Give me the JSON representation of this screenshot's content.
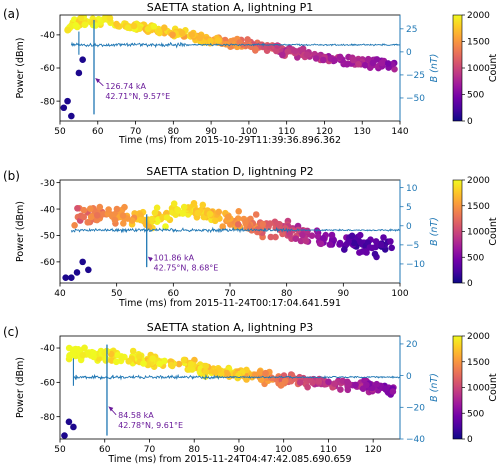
{
  "colors": {
    "signal": "#1f77b4",
    "annotation": "#6a1b9a",
    "colormap": [
      "#0d0887",
      "#46039f",
      "#7201a8",
      "#9c179e",
      "#bd3786",
      "#d8576b",
      "#ed7953",
      "#fb9f3a",
      "#fdca26",
      "#f0f921"
    ]
  },
  "colorbar": {
    "label": "Count",
    "ticks": [
      "0",
      "500",
      "1000",
      "1500",
      "2000"
    ]
  },
  "chart_data": [
    {
      "type": "scatter",
      "panel_label": "(a)",
      "title": "SAETTA station A, lightning P1",
      "xlabel": "Time (ms) from 2015-10-29T11:39:36.896.362",
      "ylabel": "Power (dBm)",
      "y2label": "B (nT)",
      "xlim": [
        50,
        140
      ],
      "ylim": [
        -92,
        -28
      ],
      "y2lim": [
        -75,
        40
      ],
      "xticks": [
        50,
        60,
        70,
        80,
        90,
        100,
        110,
        120,
        130,
        140
      ],
      "yticks": [
        -80,
        -60,
        -40
      ],
      "y2ticks": [
        -50,
        -25,
        0,
        25
      ],
      "baseline_power": -46,
      "spike": {
        "x": 59,
        "top": -31,
        "bottom": -88
      },
      "spike2": {
        "x": 55,
        "top": -38,
        "bottom": -52
      },
      "annotation": {
        "line1": "126.74 kA",
        "line2": "42.71°N, 9.57°E",
        "x": 62,
        "y": -75,
        "arrow_to": [
          59.3,
          -66
        ]
      },
      "power_trend": {
        "x": [
          52,
          55,
          60,
          70,
          80,
          90,
          100,
          110,
          120,
          130,
          139
        ],
        "y": [
          -37,
          -31,
          -32,
          -35,
          -39,
          -43,
          -46,
          -50,
          -54,
          -57,
          -58
        ],
        "spread": 4
      },
      "count_trend": {
        "x": [
          52,
          90,
          110,
          139
        ],
        "count": [
          2000,
          1700,
          900,
          600
        ]
      },
      "low_points": [
        {
          "x": 52,
          "y": -80
        },
        {
          "x": 51,
          "y": -84
        },
        {
          "x": 53,
          "y": -89
        },
        {
          "x": 55,
          "y": -63
        },
        {
          "x": 56,
          "y": -55
        }
      ]
    },
    {
      "type": "scatter",
      "panel_label": "(b)",
      "title": "SAETTA station D, lightning P2",
      "xlabel": "Time (ms) from 2015-11-24T00:17:04.641.591",
      "ylabel": "Power (dBm)",
      "y2label": "B (nT)",
      "xlim": [
        40,
        100
      ],
      "ylim": [
        -68,
        -29
      ],
      "y2lim": [
        -15,
        12
      ],
      "xticks": [
        40,
        50,
        60,
        70,
        80,
        90,
        100
      ],
      "yticks": [
        -60,
        -50,
        -40,
        -30
      ],
      "y2ticks": [
        -10,
        -5,
        0,
        5,
        10
      ],
      "baseline_power": -48,
      "spike": {
        "x": 55.3,
        "top": -42,
        "bottom": -62
      },
      "annotation": {
        "line1": "101.86 kA",
        "line2": "42.75°N, 8.68°E",
        "x": 56.5,
        "y": -61,
        "arrow_to": [
          55.5,
          -58
        ]
      },
      "power_trend": {
        "x": [
          42,
          48,
          52,
          56,
          62,
          70,
          78,
          86,
          92,
          99
        ],
        "y": [
          -44,
          -41,
          -43,
          -45,
          -40,
          -44,
          -47,
          -51,
          -53,
          -54
        ],
        "spread": 5
      },
      "count_trend": {
        "x": [
          42,
          48,
          58,
          66,
          76,
          84,
          90,
          99
        ],
        "count": [
          1200,
          1400,
          1900,
          1800,
          1200,
          750,
          350,
          250
        ]
      },
      "low_points": [
        {
          "x": 41,
          "y": -66
        },
        {
          "x": 42,
          "y": -66
        },
        {
          "x": 43,
          "y": -64
        },
        {
          "x": 44,
          "y": -60
        },
        {
          "x": 45,
          "y": -63
        }
      ]
    },
    {
      "type": "scatter",
      "panel_label": "(c)",
      "title": "SAETTA station A, lightning P3",
      "xlabel": "Time (ms) from 2015-11-24T04:47:42.085.690.659",
      "ylabel": "Power (dBm)",
      "y2label": "B (nT)",
      "xlim": [
        50,
        126
      ],
      "ylim": [
        -93,
        -33
      ],
      "y2lim": [
        -40,
        25
      ],
      "xticks": [
        50,
        60,
        70,
        80,
        90,
        100,
        110,
        120
      ],
      "yticks": [
        -80,
        -60,
        -40
      ],
      "y2ticks": [
        -40,
        -20,
        0,
        20
      ],
      "baseline_power": -57,
      "spike": {
        "x": 60.5,
        "top": -38,
        "bottom": -91
      },
      "spike2": {
        "x": 53,
        "top": -46,
        "bottom": -62
      },
      "annotation": {
        "line1": "84.58 kA",
        "line2": "42.78°N, 9.61°E",
        "x": 63,
        "y": -83,
        "arrow_to": [
          60.8,
          -74
        ]
      },
      "power_trend": {
        "x": [
          52,
          56,
          60,
          70,
          80,
          90,
          100,
          110,
          120,
          125
        ],
        "y": [
          -44,
          -43,
          -44,
          -47,
          -51,
          -55,
          -58,
          -61,
          -63,
          -64
        ],
        "spread": 5
      },
      "count_trend": {
        "x": [
          52,
          90,
          105,
          125
        ],
        "count": [
          2000,
          1800,
          1000,
          500
        ]
      },
      "low_points": [
        {
          "x": 52,
          "y": -83
        },
        {
          "x": 53,
          "y": -86
        },
        {
          "x": 51,
          "y": -91
        }
      ]
    }
  ]
}
